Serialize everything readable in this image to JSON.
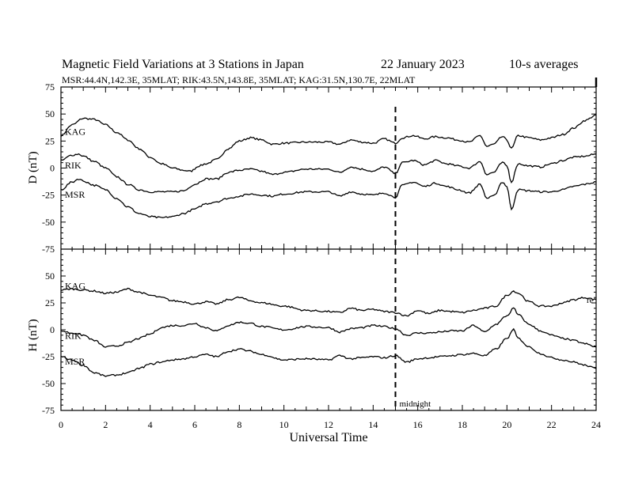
{
  "header": {
    "title": "Magnetic Field Variations at 3 Stations in Japan",
    "date": "22 January  2023",
    "averaging": "10-s averages",
    "stations_line": "MSR:44.4N,142.3E, 35MLAT;  RIK:43.5N,143.8E, 35MLAT;  KAG:31.5N,130.7E, 22MLAT"
  },
  "annotations": {
    "midnight": "midnight",
    "midnight_ut": 15,
    "edge_mark": "re"
  },
  "chart_data": [
    {
      "type": "line",
      "panel": "D",
      "ylabel": "D (nT)",
      "xlabel": "Universal Time",
      "xlim": [
        0,
        24
      ],
      "ylim": [
        -75,
        75
      ],
      "xticks": [
        0,
        2,
        4,
        6,
        8,
        10,
        12,
        14,
        16,
        18,
        20,
        22,
        24
      ],
      "yticks": [
        -75,
        -50,
        -25,
        0,
        25,
        50,
        75
      ],
      "series": [
        {
          "name": "KAG",
          "x": [
            0,
            0.5,
            1,
            1.5,
            2,
            2.5,
            3,
            3.5,
            4,
            4.5,
            5,
            5.5,
            5.8,
            6.2,
            6.5,
            7,
            7.5,
            8,
            8.5,
            9,
            9.5,
            10,
            11,
            12,
            12.5,
            13,
            13.5,
            14,
            14.5,
            15,
            15.3,
            15.8,
            16.3,
            16.8,
            17.3,
            17.8,
            18.3,
            18.8,
            19.1,
            19.4,
            19.8,
            20.0,
            20.2,
            20.5,
            21,
            21.5,
            22,
            22.5,
            23,
            23.5,
            24
          ],
          "values": [
            30,
            40,
            46,
            45,
            40,
            33,
            26,
            18,
            10,
            4,
            0,
            -2,
            -3,
            2,
            4,
            8,
            18,
            25,
            28,
            26,
            22,
            23,
            24,
            24,
            22,
            26,
            24,
            23,
            27,
            23,
            28,
            30,
            27,
            29,
            28,
            26,
            24,
            30,
            20,
            22,
            29,
            26,
            18,
            30,
            28,
            26,
            28,
            31,
            37,
            44,
            49
          ]
        },
        {
          "name": "RIK",
          "x": [
            0,
            0.5,
            0.8,
            1,
            1.5,
            2,
            2.5,
            3,
            3.5,
            4,
            4.5,
            5,
            5.5,
            6,
            6.5,
            7,
            7.5,
            8,
            8.5,
            9,
            9.5,
            10,
            11,
            12,
            12.5,
            13,
            13.5,
            14,
            14.5,
            15,
            15.3,
            15.8,
            16.3,
            16.8,
            17.3,
            17.8,
            18.3,
            18.8,
            19.1,
            19.4,
            19.8,
            20.0,
            20.2,
            20.5,
            21,
            21.5,
            22,
            22.5,
            23,
            23.5,
            24
          ],
          "values": [
            7,
            12,
            13,
            11,
            6,
            0,
            -8,
            -15,
            -20,
            -22,
            -22,
            -22,
            -21,
            -15,
            -10,
            -10,
            -4,
            -2,
            -1,
            -3,
            -6,
            -4,
            -1,
            -1,
            -4,
            1,
            -1,
            -3,
            1,
            -5,
            5,
            7,
            3,
            7,
            4,
            2,
            0,
            6,
            -6,
            -4,
            5,
            2,
            -13,
            4,
            2,
            1,
            4,
            7,
            10,
            11,
            13
          ]
        },
        {
          "name": "MSR",
          "x": [
            0,
            0.5,
            0.8,
            1,
            1.5,
            2,
            2.5,
            3,
            3.5,
            4,
            4.5,
            5,
            5.5,
            6,
            6.5,
            7,
            7.5,
            8,
            8.5,
            9,
            9.5,
            10,
            11,
            12,
            12.5,
            13,
            13.5,
            14,
            14.5,
            15,
            15.3,
            15.8,
            16.3,
            16.8,
            17.3,
            17.8,
            18.3,
            18.8,
            19.1,
            19.4,
            19.8,
            20.0,
            20.2,
            20.5,
            21,
            21.5,
            22,
            22.5,
            23,
            23.5,
            24
          ],
          "values": [
            -20,
            -13,
            -10,
            -12,
            -16,
            -20,
            -28,
            -36,
            -42,
            -45,
            -46,
            -45,
            -42,
            -38,
            -33,
            -31,
            -28,
            -26,
            -24,
            -25,
            -26,
            -24,
            -22,
            -22,
            -26,
            -22,
            -24,
            -25,
            -23,
            -27,
            -16,
            -13,
            -17,
            -14,
            -17,
            -20,
            -23,
            -15,
            -28,
            -26,
            -13,
            -17,
            -38,
            -20,
            -21,
            -22,
            -22,
            -20,
            -17,
            -15,
            -13
          ]
        }
      ]
    },
    {
      "type": "line",
      "panel": "H",
      "ylabel": "H (nT)",
      "xlabel": "Universal Time",
      "xlim": [
        0,
        24
      ],
      "ylim": [
        -75,
        75
      ],
      "xticks": [
        0,
        2,
        4,
        6,
        8,
        10,
        12,
        14,
        16,
        18,
        20,
        22,
        24
      ],
      "yticks": [
        -75,
        -50,
        -25,
        0,
        25,
        50,
        75
      ],
      "series": [
        {
          "name": "KAG",
          "x": [
            0,
            0.5,
            1,
            1.5,
            2,
            2.5,
            3,
            3.5,
            4,
            4.5,
            5,
            5.5,
            6,
            6.5,
            7,
            7.5,
            8,
            8.5,
            9,
            10,
            11,
            12,
            12.5,
            13,
            13.5,
            14,
            14.5,
            15,
            15.5,
            16,
            16.5,
            17,
            17.5,
            18,
            18.5,
            19,
            19.5,
            20,
            20.3,
            20.5,
            21,
            21.5,
            22,
            22.5,
            23,
            23.5,
            24
          ],
          "values": [
            37,
            38,
            37,
            36,
            34,
            35,
            38,
            35,
            32,
            30,
            27,
            26,
            24,
            26,
            24,
            28,
            30,
            27,
            25,
            22,
            18,
            17,
            16,
            20,
            18,
            19,
            17,
            16,
            13,
            18,
            15,
            18,
            17,
            16,
            18,
            20,
            22,
            32,
            36,
            34,
            26,
            22,
            22,
            25,
            28,
            30,
            28
          ]
        },
        {
          "name": "RIK",
          "x": [
            0,
            0.5,
            1,
            1.5,
            2,
            2.5,
            3,
            3.5,
            4,
            4.5,
            5,
            5.5,
            6,
            6.5,
            7,
            7.5,
            8,
            8.5,
            9,
            10,
            11,
            12,
            12.5,
            13,
            13.5,
            14,
            14.5,
            15,
            15.5,
            16,
            16.5,
            17,
            17.5,
            18,
            18.5,
            19,
            19.5,
            20,
            20.3,
            20.5,
            21,
            21.5,
            22,
            22.5,
            23,
            23.5,
            24
          ],
          "values": [
            -1,
            -3,
            -5,
            -10,
            -16,
            -15,
            -12,
            -8,
            -4,
            2,
            4,
            4,
            6,
            2,
            -1,
            4,
            7,
            6,
            3,
            0,
            3,
            2,
            -2,
            1,
            2,
            4,
            3,
            1,
            -5,
            -3,
            -3,
            -2,
            -1,
            -1,
            4,
            -2,
            5,
            13,
            20,
            14,
            5,
            -1,
            -5,
            -8,
            -10,
            -13,
            -16
          ]
        },
        {
          "name": "MSR",
          "x": [
            0,
            0.5,
            1,
            1.5,
            2,
            2.5,
            3,
            3.5,
            4,
            4.5,
            5,
            5.5,
            6,
            6.5,
            7,
            7.5,
            8,
            8.5,
            9,
            10,
            11,
            12,
            12.5,
            13,
            13.5,
            14,
            14.5,
            15,
            15.5,
            16,
            16.5,
            17,
            17.5,
            18,
            18.5,
            19,
            19.5,
            20,
            20.3,
            20.5,
            21,
            21.5,
            22,
            22.5,
            23,
            23.5,
            24
          ],
          "values": [
            -25,
            -28,
            -33,
            -40,
            -43,
            -42,
            -40,
            -36,
            -32,
            -30,
            -28,
            -27,
            -25,
            -23,
            -25,
            -20,
            -18,
            -20,
            -23,
            -28,
            -27,
            -28,
            -24,
            -27,
            -26,
            -25,
            -26,
            -24,
            -30,
            -27,
            -26,
            -25,
            -24,
            -23,
            -22,
            -24,
            -18,
            -8,
            0,
            -8,
            -16,
            -22,
            -26,
            -28,
            -30,
            -33,
            -36
          ]
        }
      ]
    }
  ]
}
